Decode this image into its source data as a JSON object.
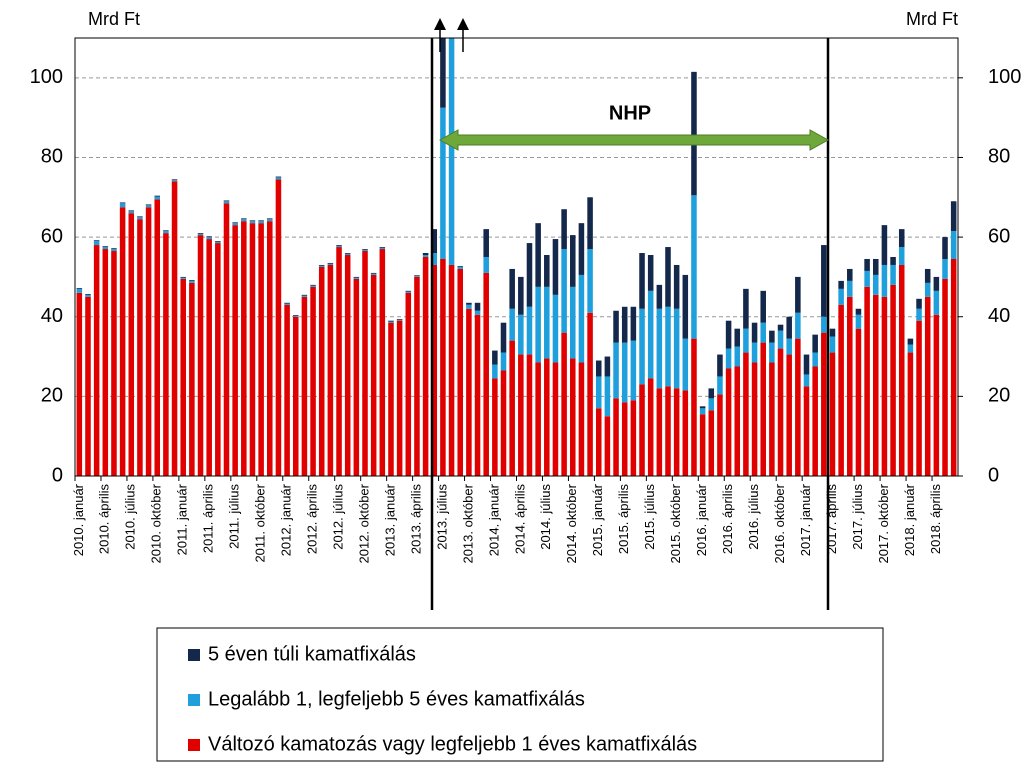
{
  "chart_data": {
    "type": "stacked_bar",
    "annotation": "NHP",
    "ylabel": "Mrd Ft",
    "y2label": "Mrd Ft",
    "ylim": [
      0,
      110
    ],
    "yticks": [
      0,
      20,
      40,
      60,
      80,
      100
    ],
    "y2lim": [
      0,
      110
    ],
    "y2ticks": [
      0,
      20,
      40,
      60,
      80,
      100
    ],
    "grid": true,
    "categories": [
      "2010. január",
      null,
      null,
      "2010. április",
      null,
      null,
      "2010. július",
      null,
      null,
      "2010. október",
      null,
      null,
      "2011. január",
      null,
      null,
      "2011. április",
      null,
      null,
      "2011. július",
      null,
      null,
      "2011. október",
      null,
      null,
      "2012. január",
      null,
      null,
      "2012. április",
      null,
      null,
      "2012. július",
      null,
      null,
      "2012. október",
      null,
      null,
      "2013. január",
      null,
      null,
      "2013. április",
      null,
      null,
      "2013. július",
      null,
      null,
      "2013. október",
      null,
      null,
      "2014. január",
      null,
      null,
      "2014. április",
      null,
      null,
      "2014. július",
      null,
      null,
      "2014. október",
      null,
      null,
      "2015. január",
      null,
      null,
      "2015. április",
      null,
      null,
      "2015. július",
      null,
      null,
      "2015. október",
      null,
      null,
      "2016. január",
      null,
      null,
      "2016. április",
      null,
      null,
      "2016. július",
      null,
      null,
      "2016. október",
      null,
      null,
      "2017. január",
      null,
      null,
      "2017. április",
      null,
      null,
      "2017. július",
      null,
      null,
      "2017. október",
      null,
      null,
      "2018. január",
      null,
      null,
      "2018. április",
      null,
      null
    ],
    "series": [
      {
        "name": "Változó kamatozás vagy legfeljebb 1 éves kamatfixálás",
        "color": "#e00000",
        "values": [
          46,
          45,
          58,
          57,
          56.5,
          67.5,
          66,
          64.5,
          67.5,
          69.5,
          61,
          74,
          49.5,
          48.5,
          60.5,
          59.5,
          58.5,
          68.5,
          63,
          64,
          63.5,
          63.5,
          64,
          74.5,
          43,
          40,
          45,
          47.5,
          52.5,
          53,
          57.5,
          55.5,
          49.5,
          56.5,
          50.5,
          57,
          38.5,
          39,
          46,
          50,
          55,
          53,
          54.5,
          53,
          52,
          42,
          40.5,
          51,
          24.5,
          26.5,
          34,
          30.5,
          30.5,
          28.5,
          29.5,
          28.5,
          36,
          29.5,
          28.5,
          41,
          17,
          15,
          19.5,
          18.5,
          19,
          23,
          24.5,
          22,
          22.5,
          22,
          21.5,
          34.5,
          15.5,
          16.5,
          20.5,
          27,
          27.5,
          31,
          28.5,
          33.5,
          28.5,
          32,
          30.5,
          34.5,
          22.5,
          27.5,
          36,
          31,
          43,
          45,
          37,
          47.5,
          45.5,
          45,
          48,
          53,
          31,
          39,
          45,
          40.5,
          49.5,
          54.5
        ]
      },
      {
        "name": "Legalább 1, legfeljebb 5 éves kamatfixálás",
        "color": "#1fa0dc",
        "values": [
          1,
          0.5,
          1,
          0.5,
          0.5,
          1,
          0.5,
          0.5,
          0.5,
          0.7,
          0.5,
          0.3,
          0.3,
          0.5,
          0.3,
          0.5,
          0.3,
          0.5,
          0.5,
          0.5,
          0.5,
          0.5,
          0.5,
          0.5,
          0.3,
          0.2,
          0.3,
          0.3,
          0.3,
          0.3,
          0.3,
          0.3,
          0.3,
          0.3,
          0.3,
          0.3,
          0.3,
          0.2,
          0.3,
          0.2,
          0.5,
          3,
          38,
          70,
          0.5,
          1,
          1,
          4,
          3.5,
          4.5,
          8,
          10,
          12,
          19,
          18,
          17,
          21,
          18,
          22,
          16,
          8,
          10,
          14,
          15,
          15,
          19,
          22,
          20,
          20,
          20,
          13,
          36,
          1.5,
          3,
          4.5,
          5,
          5,
          6,
          5,
          5,
          5,
          4.5,
          4,
          6.5,
          3,
          3.5,
          4,
          4,
          4,
          4,
          3.5,
          4,
          5,
          8,
          5,
          4.5,
          2,
          3,
          3.5,
          6,
          5,
          7
        ]
      },
      {
        "name": "5 éven túli kamatfixálás",
        "color": "#14284b",
        "values": [
          0.2,
          0.2,
          0.2,
          0.2,
          0.2,
          0.2,
          0.2,
          0.2,
          0.2,
          0.2,
          0.2,
          0.2,
          0.2,
          0.2,
          0.2,
          0.2,
          0.2,
          0.2,
          0.2,
          0.2,
          0.2,
          0.2,
          0.2,
          0.2,
          0.2,
          0.2,
          0.2,
          0.2,
          0.2,
          0.2,
          0.2,
          0.2,
          0.2,
          0.2,
          0.2,
          0.2,
          0.2,
          0.2,
          0.2,
          0.2,
          0.5,
          6,
          30,
          0,
          0.2,
          0.5,
          2,
          7,
          3.5,
          7.5,
          10,
          9.5,
          16,
          16,
          8,
          14,
          10,
          13,
          13,
          13,
          4,
          5,
          8,
          9,
          8.5,
          14,
          9,
          6,
          15,
          11,
          16,
          31,
          0.5,
          2.5,
          5.5,
          7,
          4.5,
          10,
          5,
          8,
          3,
          1.5,
          5.5,
          9,
          5,
          4.5,
          18,
          2,
          2,
          3,
          1.5,
          3,
          4,
          10,
          2,
          4.5,
          1.5,
          2.5,
          3.5,
          3.5,
          5.5,
          7.5
        ]
      }
    ]
  }
}
